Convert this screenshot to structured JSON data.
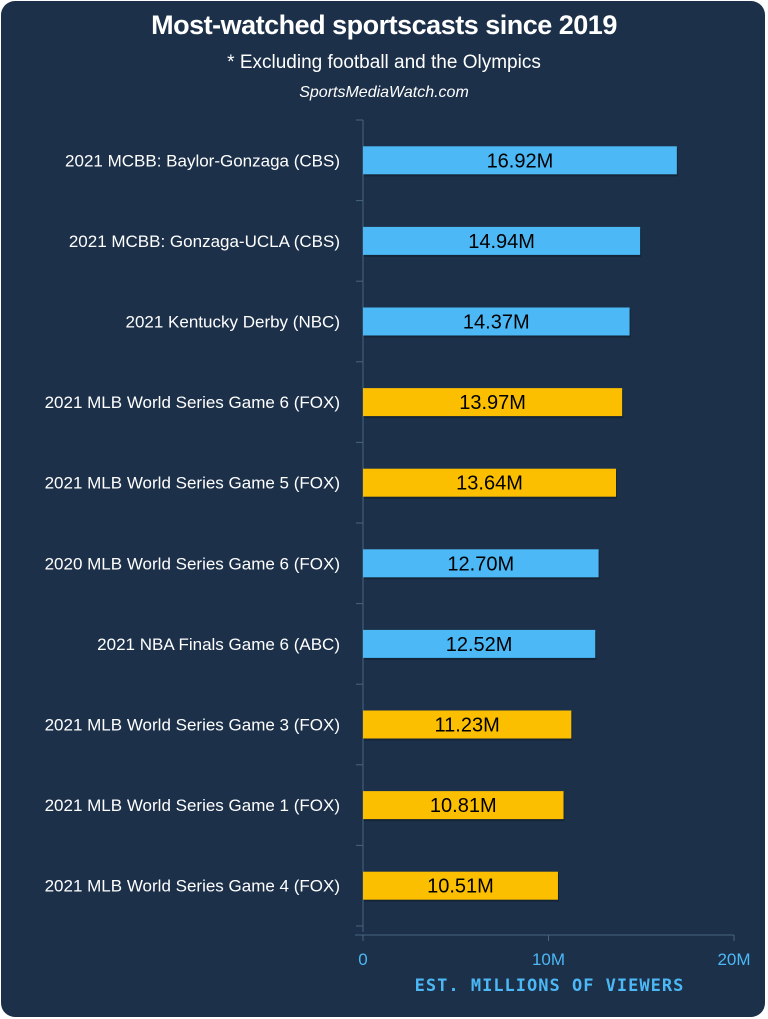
{
  "chart_data": {
    "type": "bar",
    "orientation": "horizontal",
    "title": "Most-watched sportscasts since 2019",
    "subtitle": "* Excluding football and the Olympics",
    "source": "SportsMediaWatch.com",
    "xlabel": "EST. MILLIONS OF VIEWERS",
    "ylabel": "",
    "xlim": [
      0,
      20
    ],
    "xticks": [
      {
        "value": 0,
        "label": "0"
      },
      {
        "value": 10,
        "label": "10M"
      },
      {
        "value": 20,
        "label": "20M"
      }
    ],
    "grid": false,
    "categories": [
      "2021 MCBB: Baylor-Gonzaga (CBS)",
      "2021 MCBB: Gonzaga-UCLA (CBS)",
      "2021 Kentucky Derby (NBC)",
      "2021 MLB World Series Game 6 (FOX)",
      "2021 MLB World Series Game 5 (FOX)",
      "2020 MLB World Series Game 6 (FOX)",
      "2021 NBA Finals Game 6 (ABC)",
      "2021 MLB World Series Game 3 (FOX)",
      "2021 MLB World Series Game 1 (FOX)",
      "2021 MLB World Series Game 4 (FOX)"
    ],
    "values": [
      16.92,
      14.94,
      14.37,
      13.97,
      13.64,
      12.7,
      12.52,
      11.23,
      10.81,
      10.51
    ],
    "data_labels": [
      "16.92M",
      "14.94M",
      "14.37M",
      "13.97M",
      "13.64M",
      "12.70M",
      "12.52M",
      "11.23M",
      "10.81M",
      "10.51M"
    ],
    "bar_colors": [
      "#4cb8f5",
      "#4cb8f5",
      "#4cb8f5",
      "#fbbf00",
      "#fbbf00",
      "#4cb8f5",
      "#4cb8f5",
      "#fbbf00",
      "#fbbf00",
      "#fbbf00"
    ]
  },
  "colors": {
    "background": "#1c3049",
    "axis": "#4a6580",
    "accent": "#4cb8f5",
    "highlight": "#fbbf00"
  }
}
